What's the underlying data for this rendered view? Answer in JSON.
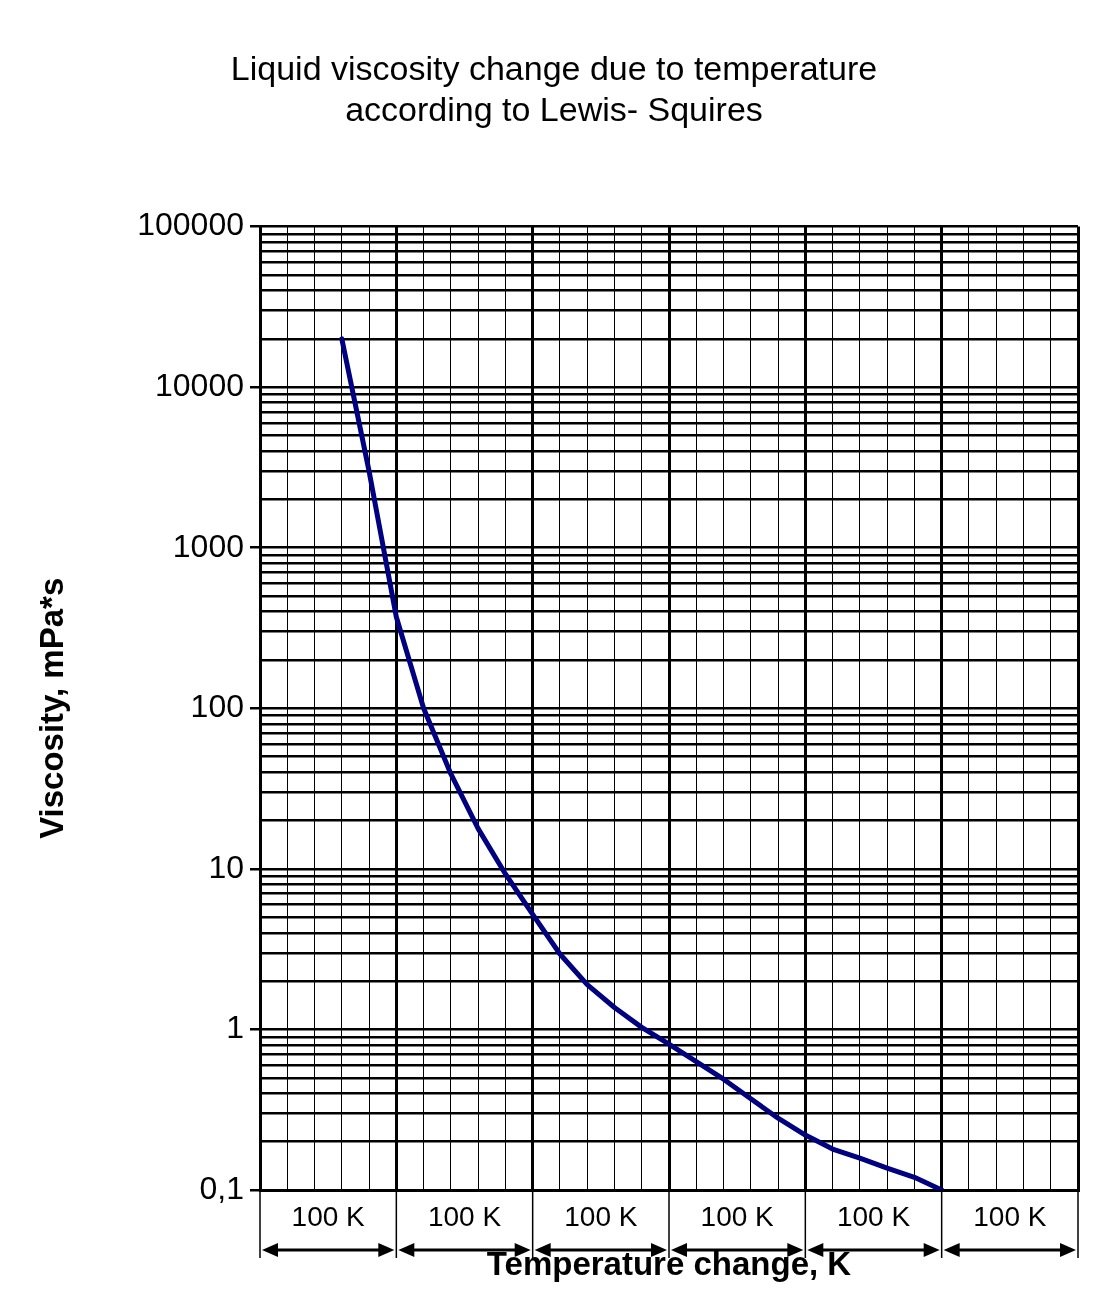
{
  "chart_data": {
    "type": "line",
    "title": "Liquid viscosity change due to temperature according to Lewis- Squires",
    "xlabel": "Temperature change, K",
    "ylabel": "Viscosity, mPa*s",
    "categories": [
      null,
      null,
      null,
      null,
      null,
      null,
      null,
      null,
      null,
      null,
      null,
      null,
      null,
      null,
      null,
      null,
      null,
      null,
      null,
      null,
      null,
      null,
      null,
      null,
      null,
      null,
      null,
      null,
      null,
      null,
      null
    ],
    "series": [
      {
        "color": "#000080",
        "values": [
          null,
          null,
          null,
          20000,
          3000,
          370,
          100,
          39,
          17.8,
          9.3,
          5.2,
          2.95,
          1.9,
          1.37,
          1.03,
          0.81,
          0.63,
          0.49,
          0.37,
          0.28,
          0.22,
          0.18,
          0.158,
          0.137,
          0.12,
          0.1,
          null,
          null,
          null,
          null,
          null
        ]
      }
    ],
    "ylim": [
      0.1,
      100000
    ],
    "yticks": [
      {
        "value": 0.1,
        "label": "0,1"
      },
      {
        "value": 0.2,
        "label": null
      },
      {
        "value": 0.3,
        "label": null
      },
      {
        "value": 0.4,
        "label": null
      },
      {
        "value": 0.5,
        "label": null
      },
      {
        "value": 0.6,
        "label": null
      },
      {
        "value": 0.7,
        "label": null
      },
      {
        "value": 0.8,
        "label": null
      },
      {
        "value": 0.9,
        "label": null
      },
      {
        "value": 1,
        "label": "1"
      },
      {
        "value": 2,
        "label": null
      },
      {
        "value": 3,
        "label": null
      },
      {
        "value": 4,
        "label": null
      },
      {
        "value": 5,
        "label": null
      },
      {
        "value": 6,
        "label": null
      },
      {
        "value": 7,
        "label": null
      },
      {
        "value": 8,
        "label": null
      },
      {
        "value": 9,
        "label": null
      },
      {
        "value": 10,
        "label": "10"
      },
      {
        "value": 20,
        "label": null
      },
      {
        "value": 30,
        "label": null
      },
      {
        "value": 40,
        "label": null
      },
      {
        "value": 50,
        "label": null
      },
      {
        "value": 60,
        "label": null
      },
      {
        "value": 70,
        "label": null
      },
      {
        "value": 80,
        "label": null
      },
      {
        "value": 90,
        "label": null
      },
      {
        "value": 100,
        "label": "100"
      },
      {
        "value": 200,
        "label": null
      },
      {
        "value": 300,
        "label": null
      },
      {
        "value": 400,
        "label": null
      },
      {
        "value": 500,
        "label": null
      },
      {
        "value": 600,
        "label": null
      },
      {
        "value": 700,
        "label": null
      },
      {
        "value": 800,
        "label": null
      },
      {
        "value": 900,
        "label": null
      },
      {
        "value": 1000,
        "label": "1000"
      },
      {
        "value": 2000,
        "label": null
      },
      {
        "value": 3000,
        "label": null
      },
      {
        "value": 4000,
        "label": null
      },
      {
        "value": 5000,
        "label": null
      },
      {
        "value": 6000,
        "label": null
      },
      {
        "value": 7000,
        "label": null
      },
      {
        "value": 8000,
        "label": null
      },
      {
        "value": 9000,
        "label": null
      },
      {
        "value": 10000,
        "label": "10000"
      },
      {
        "value": 20000,
        "label": null
      },
      {
        "value": 30000,
        "label": null
      },
      {
        "value": 40000,
        "label": null
      },
      {
        "value": 50000,
        "label": null
      },
      {
        "value": 60000,
        "label": null
      },
      {
        "value": 70000,
        "label": null
      },
      {
        "value": 80000,
        "label": null
      },
      {
        "value": 90000,
        "label": null
      },
      {
        "value": 100000,
        "label": "100000"
      }
    ],
    "log": "y",
    "grid": true,
    "legend": false,
    "marker": "none",
    "line_style": "solid",
    "annotations": [
      "100 K",
      "100 K",
      "100 K",
      "100 K",
      "100 K",
      "100 K"
    ]
  }
}
